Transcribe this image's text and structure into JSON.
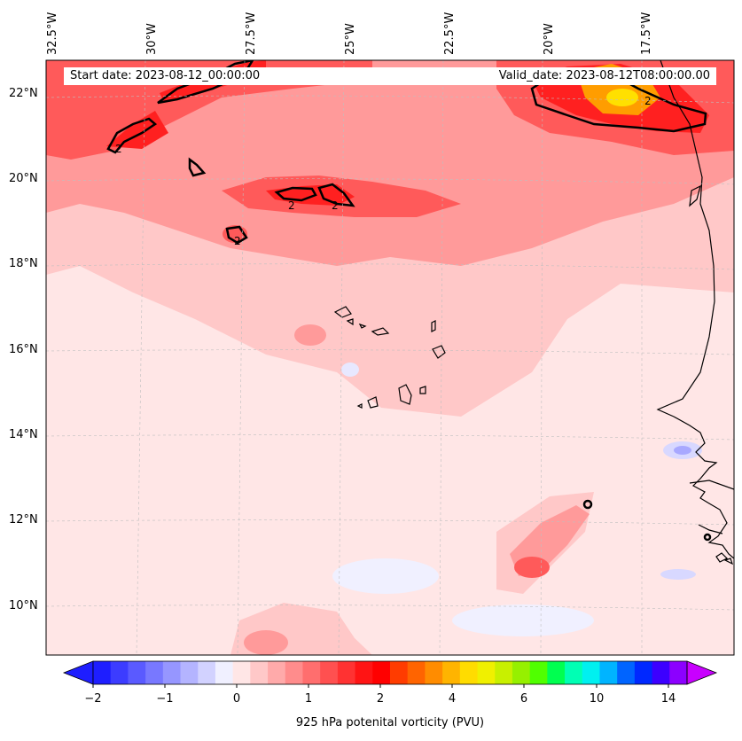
{
  "header": {
    "start_date": "Start date: 2023-08-12_00:00:00",
    "valid_date": "Valid_date: 2023-08-12T08:00:00.00"
  },
  "map": {
    "longitude_labels": [
      "32.5°W",
      "30°W",
      "27.5°W",
      "25°W",
      "22.5°W",
      "20°W",
      "17.5°W"
    ],
    "latitude_labels": [
      "22°N",
      "20°N",
      "18°N",
      "16°N",
      "14°N",
      "12°N",
      "10°N"
    ],
    "contour_label": "2",
    "fill_colors": {
      "background": "#ffe6e6",
      "light": "#ffc8c8",
      "medium": "#ff9a9a",
      "strong": "#ff5a5a",
      "intense": "#ff2020",
      "orange": "#ff9d00",
      "yellow": "#ffe000",
      "light_blue": "#d8d8ff",
      "blue": "#a8a8ff"
    }
  },
  "colorbar": {
    "tick_labels": [
      "−2",
      "−1",
      "0",
      "1",
      "2",
      "4",
      "6",
      "10",
      "14"
    ],
    "label": "925 hPa potenital vorticity (PVU)",
    "colors": [
      "#1e1eff",
      "#3c3cff",
      "#5a5aff",
      "#7878ff",
      "#9696ff",
      "#b4b4ff",
      "#d2d2ff",
      "#f0f0ff",
      "#ffe6e6",
      "#ffc8c8",
      "#ffaaaa",
      "#ff8c8c",
      "#ff6e6e",
      "#ff5050",
      "#ff3232",
      "#ff1414",
      "#ff0000",
      "#ff3c00",
      "#ff6400",
      "#ff8c00",
      "#ffb400",
      "#ffdc00",
      "#f0f000",
      "#c8f000",
      "#96f000",
      "#50ff00",
      "#00ff50",
      "#00ffb4",
      "#00f0f0",
      "#00b4ff",
      "#0064ff",
      "#0028ff",
      "#3c00ff",
      "#8c00ff"
    ]
  }
}
